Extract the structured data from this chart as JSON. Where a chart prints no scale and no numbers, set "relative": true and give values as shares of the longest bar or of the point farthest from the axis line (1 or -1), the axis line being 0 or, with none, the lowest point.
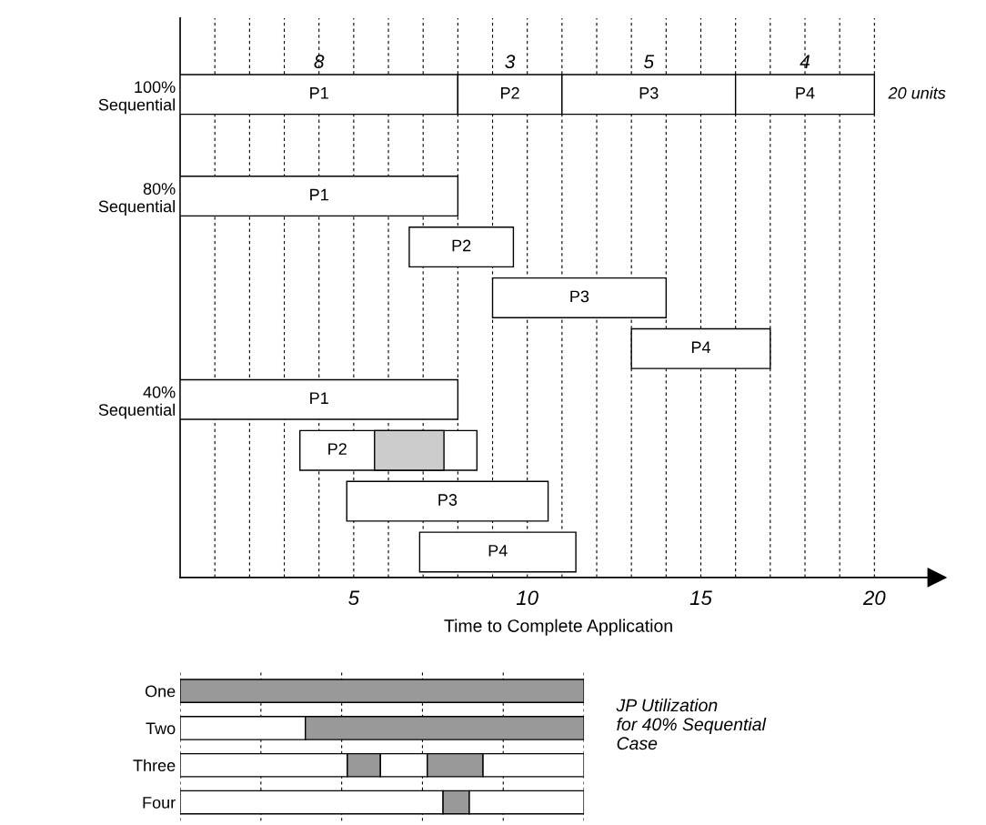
{
  "chart_data": [
    {
      "type": "bar",
      "orientation": "horizontal",
      "categories": [
        "100%\nSequential",
        null,
        "80%\nSequential",
        null,
        null,
        null,
        "40%\nSequential",
        null,
        null,
        null
      ],
      "series": [
        {
          "name": "P1",
          "color": "#ffffff",
          "values": [
            8,
            null,
            8,
            null,
            null,
            null,
            8,
            null,
            null,
            null
          ],
          "base": [
            0,
            null,
            0,
            null,
            null,
            null,
            0,
            null,
            null,
            null
          ],
          "value_labels": [
            "8",
            null,
            null,
            null,
            null,
            null,
            null,
            null,
            null,
            null
          ]
        },
        {
          "name": "P2",
          "color": "#ffffff",
          "values": [
            3,
            null,
            null,
            3,
            null,
            null,
            null,
            5.1,
            null,
            null
          ],
          "base": [
            8,
            null,
            null,
            6.6,
            null,
            null,
            null,
            3.45,
            null,
            null
          ],
          "value_labels": [
            "3",
            null,
            null,
            null,
            null,
            null,
            null,
            null,
            null,
            null
          ]
        },
        {
          "color": "#cccccc",
          "values": [
            null,
            null,
            null,
            null,
            null,
            null,
            null,
            2,
            null,
            null
          ],
          "base": [
            null,
            null,
            null,
            null,
            null,
            null,
            null,
            5.6,
            null,
            null
          ]
        },
        {
          "name": "P3",
          "color": "#ffffff",
          "values": [
            5,
            null,
            null,
            null,
            5,
            null,
            null,
            null,
            5.8,
            null
          ],
          "base": [
            11,
            null,
            null,
            null,
            9,
            null,
            null,
            null,
            4.8,
            null
          ],
          "value_labels": [
            "5",
            null,
            null,
            null,
            null,
            null,
            null,
            null,
            null,
            null
          ]
        },
        {
          "name": "P4",
          "color": "#ffffff",
          "values": [
            4,
            null,
            null,
            null,
            null,
            4,
            null,
            null,
            null,
            4.5
          ],
          "base": [
            16,
            null,
            null,
            null,
            null,
            13,
            null,
            null,
            null,
            6.9
          ],
          "value_labels": [
            "4",
            null,
            null,
            null,
            null,
            null,
            null,
            null,
            null,
            null
          ]
        }
      ],
      "xlabel": "Time to Complete Application",
      "xlim": [
        0,
        21.8
      ],
      "xticks": [
        {
          "value": 1,
          "label": null
        },
        {
          "value": 2,
          "label": null
        },
        {
          "value": 3,
          "label": null
        },
        {
          "value": 4,
          "label": null
        },
        5,
        {
          "value": 6,
          "label": null
        },
        {
          "value": 7,
          "label": null
        },
        {
          "value": 8,
          "label": null
        },
        {
          "value": 9,
          "label": null
        },
        10,
        {
          "value": 11,
          "label": null
        },
        {
          "value": 12,
          "label": null
        },
        {
          "value": 13,
          "label": null
        },
        {
          "value": 14,
          "label": null
        },
        15,
        {
          "value": 16,
          "label": null
        },
        {
          "value": 17,
          "label": null
        },
        {
          "value": 18,
          "label": null
        },
        {
          "value": 19,
          "label": null
        },
        20
      ],
      "grid": "x",
      "annotations": [
        {
          "text": "20 units",
          "x": 20,
          "y": "100%\nSequential"
        }
      ]
    },
    {
      "type": "bar",
      "orientation": "horizontal",
      "categories": [
        "One",
        "Two",
        "Three",
        "Four"
      ],
      "series": [
        {
          "color": "#ffffff",
          "values": [
            null,
            0.31,
            0.414,
            0.651
          ]
        },
        {
          "color": "#999999",
          "values": [
            1,
            0.69,
            0.082,
            0.065
          ]
        },
        {
          "color": "#ffffff",
          "values": [
            null,
            null,
            0.116,
            0.284
          ]
        },
        {
          "color": "#999999",
          "values": [
            null,
            null,
            0.138,
            null
          ]
        },
        {
          "color": "#ffffff",
          "values": [
            null,
            null,
            0.25,
            null
          ]
        }
      ],
      "stacked": true,
      "relative": true,
      "grid": "x",
      "tick_labels": "y",
      "annotations": [
        "JP Utilization\nfor 40% Sequential\nCase"
      ]
    }
  ]
}
